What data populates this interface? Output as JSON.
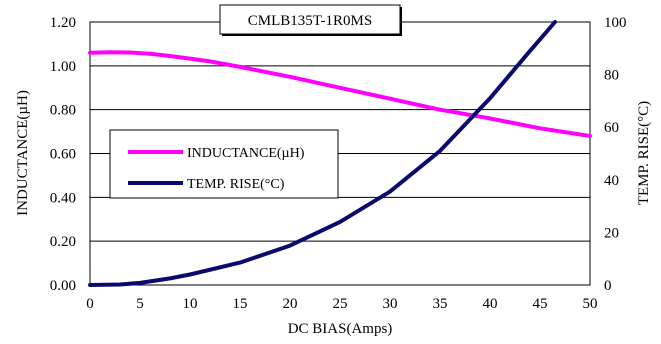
{
  "chart_data": {
    "type": "line",
    "title": "CMLB135T-1R0MS",
    "xlabel": "DC BIAS(Amps)",
    "ylabel_left": "INDUCTANCE(µH)",
    "ylabel_right": "TEMP. RISE(°C)",
    "xlim": [
      0,
      50
    ],
    "ylim_left": [
      0,
      1.2
    ],
    "ylim_right": [
      0,
      100
    ],
    "x_ticks": [
      "0",
      "5",
      "10",
      "15",
      "20",
      "25",
      "30",
      "35",
      "40",
      "45",
      "50"
    ],
    "y_left_ticks": [
      "0.00",
      "0.20",
      "0.40",
      "0.60",
      "0.80",
      "1.00",
      "1.20"
    ],
    "y_right_ticks": [
      "0",
      "20",
      "40",
      "60",
      "80",
      "100"
    ],
    "grid": "horizontal",
    "legend_position": "center-left",
    "series": [
      {
        "name": "INDUCTANCE(µH)",
        "axis": "left",
        "color": "#ff00ff",
        "x": [
          0,
          2,
          4,
          6,
          8,
          10,
          12,
          15,
          20,
          25,
          30,
          35,
          40,
          45,
          50
        ],
        "y": [
          1.06,
          1.062,
          1.061,
          1.055,
          1.045,
          1.033,
          1.02,
          0.995,
          0.95,
          0.9,
          0.85,
          0.8,
          0.76,
          0.715,
          0.68
        ]
      },
      {
        "name": "TEMP. RISE(°C)",
        "axis": "right",
        "color": "#0a0a6e",
        "x": [
          0,
          3,
          5,
          8,
          10,
          15,
          20,
          25,
          30,
          35,
          40,
          42,
          44,
          46.5
        ],
        "y": [
          0,
          0.2,
          0.8,
          2.5,
          4,
          8.5,
          15,
          24,
          35.5,
          51,
          71,
          80,
          89,
          100
        ]
      }
    ]
  }
}
